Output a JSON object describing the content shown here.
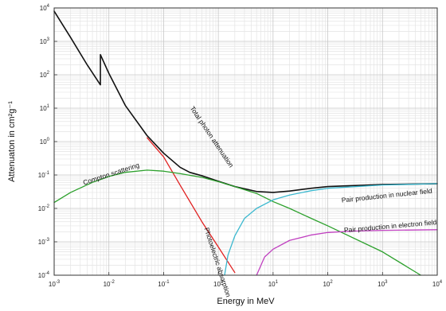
{
  "chart_data": {
    "type": "line",
    "xlabel": "Energy in MeV",
    "ylabel": "Attenuaton in cm²g⁻¹",
    "x_scale": "log",
    "y_scale": "log",
    "xlim": [
      0.001,
      10000
    ],
    "ylim": [
      0.0001,
      10000
    ],
    "grid": true,
    "x_ticks": [
      {
        "value": 0.001,
        "base": "10",
        "exp": "-3"
      },
      {
        "value": 0.01,
        "base": "10",
        "exp": "-2"
      },
      {
        "value": 0.1,
        "base": "10",
        "exp": "-1"
      },
      {
        "value": 1,
        "base": "10",
        "exp": "0"
      },
      {
        "value": 10,
        "base": "10",
        "exp": "1"
      },
      {
        "value": 100,
        "base": "10",
        "exp": "2"
      },
      {
        "value": 1000,
        "base": "10",
        "exp": "3"
      },
      {
        "value": 10000,
        "base": "10",
        "exp": "4"
      }
    ],
    "y_ticks": [
      {
        "value": 0.0001,
        "base": "10",
        "exp": "-4"
      },
      {
        "value": 0.001,
        "base": "10",
        "exp": "-3"
      },
      {
        "value": 0.01,
        "base": "10",
        "exp": "-2"
      },
      {
        "value": 0.1,
        "base": "10",
        "exp": "-1"
      },
      {
        "value": 1,
        "base": "10",
        "exp": "0"
      },
      {
        "value": 10,
        "base": "10",
        "exp": "1"
      },
      {
        "value": 100,
        "base": "10",
        "exp": "2"
      },
      {
        "value": 1000,
        "base": "10",
        "exp": "3"
      },
      {
        "value": 10000,
        "base": "10",
        "exp": "4"
      }
    ],
    "series": [
      {
        "name": "Total photon attenuation",
        "color": "#111111",
        "x": [
          0.001,
          0.002,
          0.004,
          0.007,
          0.007,
          0.01,
          0.02,
          0.05,
          0.1,
          0.2,
          0.3,
          0.5,
          1,
          2,
          5,
          10,
          20,
          50,
          100,
          1000,
          10000
        ],
        "y": [
          8000,
          1300,
          200,
          50,
          400,
          110,
          12,
          1.5,
          0.45,
          0.17,
          0.12,
          0.095,
          0.065,
          0.045,
          0.032,
          0.03,
          0.033,
          0.04,
          0.045,
          0.052,
          0.055
        ]
      },
      {
        "name": "Photoelectric absorption",
        "color": "#e02020",
        "x": [
          0.05,
          0.1,
          0.2,
          0.5,
          1,
          1.5,
          2
        ],
        "y": [
          1.3,
          0.35,
          0.05,
          0.004,
          0.0007,
          0.00025,
          0.00012
        ]
      },
      {
        "name": "Compton scattering",
        "color": "#2ca02c",
        "x": [
          0.001,
          0.002,
          0.005,
          0.01,
          0.02,
          0.05,
          0.1,
          0.2,
          0.5,
          1,
          2,
          5,
          10,
          20,
          50,
          100,
          1000,
          5000
        ],
        "y": [
          0.015,
          0.03,
          0.06,
          0.09,
          0.12,
          0.14,
          0.13,
          0.11,
          0.085,
          0.063,
          0.045,
          0.028,
          0.016,
          0.01,
          0.005,
          0.003,
          0.0005,
          0.0001
        ]
      },
      {
        "name": "Pair production in nuclear field",
        "color": "#3bb8cf",
        "x": [
          1.3,
          1.5,
          2,
          3,
          5,
          10,
          20,
          50,
          100,
          1000,
          10000
        ],
        "y": [
          0.0001,
          0.0004,
          0.0015,
          0.005,
          0.01,
          0.018,
          0.025,
          0.034,
          0.04,
          0.05,
          0.055
        ]
      },
      {
        "name": "Pair production in electron field",
        "color": "#c040c0",
        "x": [
          5,
          7,
          10,
          20,
          50,
          100,
          300,
          1000,
          10000
        ],
        "y": [
          0.0001,
          0.00035,
          0.0006,
          0.0011,
          0.0016,
          0.0019,
          0.0021,
          0.0022,
          0.0023
        ]
      }
    ],
    "annotations": [
      {
        "text": "Total photon attenuation",
        "x": 0.3,
        "y": 10,
        "angle": 56
      },
      {
        "text": "Compton scattering",
        "x": 0.0035,
        "y": 0.05,
        "angle": -18
      },
      {
        "text": "Photoelectric absorption",
        "x": 0.55,
        "y": 0.0025,
        "angle": 72
      },
      {
        "text": "Pair production in nuclear field",
        "x": 180,
        "y": 0.015,
        "angle": -6
      },
      {
        "text": "Pair production in electron field",
        "x": 200,
        "y": 0.0019,
        "angle": -5
      }
    ]
  }
}
